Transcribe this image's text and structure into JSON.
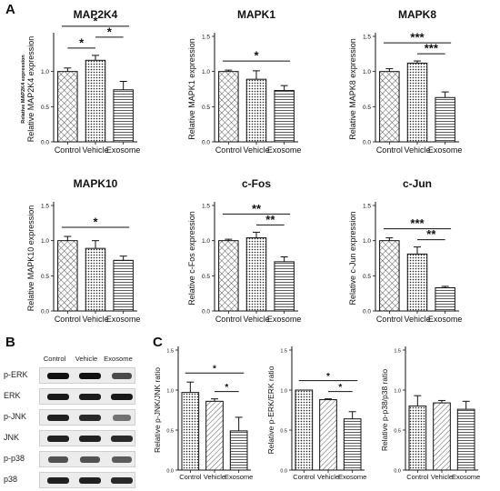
{
  "panel_letters": {
    "a": "A",
    "b": "B",
    "c": "C"
  },
  "colors": {
    "bar_fill": "#ffffff",
    "bar_stroke": "#111111",
    "text": "#111111"
  },
  "blot": {
    "lanes": [
      "Control",
      "Vehicle",
      "Exosome"
    ],
    "rows": [
      {
        "label": "p-ERK",
        "intensity": [
          1.0,
          1.0,
          0.65
        ]
      },
      {
        "label": "ERK",
        "intensity": [
          0.95,
          0.95,
          0.95
        ]
      },
      {
        "label": "p-JNK",
        "intensity": [
          0.9,
          0.85,
          0.4
        ]
      },
      {
        "label": "JNK",
        "intensity": [
          0.9,
          0.9,
          0.85
        ]
      },
      {
        "label": "p-p38",
        "intensity": [
          0.6,
          0.6,
          0.55
        ]
      },
      {
        "label": "p38",
        "intensity": [
          0.9,
          0.9,
          0.85
        ]
      }
    ]
  },
  "chart_data": [
    {
      "type": "bar",
      "title": "MAP2K4",
      "categories": [
        "Control",
        "Vehicle",
        "Exosome"
      ],
      "values": [
        1.0,
        1.16,
        0.74
      ],
      "errors": [
        0.05,
        0.07,
        0.12
      ],
      "ylabel": "Relative MAP2K4 expression",
      "ylabel_secondary": "Relative MAP2K4 expression",
      "ylim": [
        0,
        1.5
      ],
      "yticks": [
        "0.0",
        "0.5",
        "1.0"
      ],
      "patterns": [
        "crosshatch",
        "dots",
        "hlines"
      ],
      "significance": [
        {
          "from": 0,
          "to": 2,
          "label": "*"
        },
        {
          "from": 0,
          "to": 1,
          "label": "*"
        },
        {
          "from": 1,
          "to": 2,
          "label": "*"
        }
      ]
    },
    {
      "type": "bar",
      "title": "MAPK1",
      "categories": [
        "Control",
        "Vehicle",
        "Exosome"
      ],
      "values": [
        1.0,
        0.89,
        0.73
      ],
      "errors": [
        0.02,
        0.12,
        0.07
      ],
      "ylabel": "Relative MAPK1 expression",
      "ylim": [
        0,
        1.5
      ],
      "yticks": [
        "0.0",
        "0.5",
        "1.0",
        "1.5"
      ],
      "patterns": [
        "crosshatch",
        "dots",
        "hlines"
      ],
      "significance": [
        {
          "from": 0,
          "to": 2,
          "label": "*"
        }
      ]
    },
    {
      "type": "bar",
      "title": "MAPK8",
      "categories": [
        "Control",
        "Vehicle",
        "Exosome"
      ],
      "values": [
        1.0,
        1.12,
        0.63
      ],
      "errors": [
        0.04,
        0.03,
        0.08
      ],
      "ylabel": "Relative MAPK8 expression",
      "ylim": [
        0,
        1.5
      ],
      "yticks": [
        "0.0",
        "0.5",
        "1.0",
        "1.5"
      ],
      "patterns": [
        "crosshatch",
        "dots",
        "hlines"
      ],
      "significance": [
        {
          "from": 0,
          "to": 2,
          "label": "***"
        },
        {
          "from": 1,
          "to": 2,
          "label": "***"
        }
      ]
    },
    {
      "type": "bar",
      "title": "MAPK10",
      "categories": [
        "Control",
        "Vehicle",
        "Exosome"
      ],
      "values": [
        1.0,
        0.89,
        0.72
      ],
      "errors": [
        0.06,
        0.11,
        0.06
      ],
      "ylabel": "Relative MAPK10 expression",
      "ylim": [
        0,
        1.5
      ],
      "yticks": [
        "0.0",
        "0.5",
        "1.0",
        "1.5"
      ],
      "patterns": [
        "crosshatch",
        "dots",
        "hlines"
      ],
      "significance": [
        {
          "from": 0,
          "to": 2,
          "label": "*"
        }
      ]
    },
    {
      "type": "bar",
      "title": "c-Fos",
      "categories": [
        "Control",
        "Vehicle",
        "Exosome"
      ],
      "values": [
        1.0,
        1.04,
        0.7
      ],
      "errors": [
        0.02,
        0.08,
        0.07
      ],
      "ylabel": "Relative c-Fos expression",
      "ylim": [
        0,
        1.5
      ],
      "yticks": [
        "0.0",
        "0.5",
        "1.0",
        "1.5"
      ],
      "patterns": [
        "crosshatch",
        "dots",
        "hlines"
      ],
      "significance": [
        {
          "from": 0,
          "to": 2,
          "label": "**"
        },
        {
          "from": 1,
          "to": 2,
          "label": "**"
        }
      ]
    },
    {
      "type": "bar",
      "title": "c-Jun",
      "categories": [
        "Control",
        "Vehicle",
        "Exosome"
      ],
      "values": [
        1.0,
        0.81,
        0.33
      ],
      "errors": [
        0.04,
        0.1,
        0.02
      ],
      "ylabel": "Relative c-Jun expression",
      "ylim": [
        0,
        1.5
      ],
      "yticks": [
        "0.0",
        "0.5",
        "1.0",
        "1.5"
      ],
      "patterns": [
        "crosshatch",
        "dots",
        "hlines"
      ],
      "significance": [
        {
          "from": 0,
          "to": 2,
          "label": "***"
        },
        {
          "from": 1,
          "to": 2,
          "label": "**"
        }
      ]
    },
    {
      "type": "bar",
      "title": "",
      "categories": [
        "Control",
        "Vehicle",
        "Exosome"
      ],
      "values": [
        0.97,
        0.86,
        0.49
      ],
      "errors": [
        0.13,
        0.03,
        0.17
      ],
      "ylabel": "Relative p-JNK/JNK ratio",
      "ylim": [
        0,
        1.5
      ],
      "yticks": [
        "0.0",
        "0.5",
        "1.0",
        "1.5"
      ],
      "patterns": [
        "dots",
        "diag",
        "hlines"
      ],
      "significance": [
        {
          "from": 0,
          "to": 2,
          "label": "*"
        },
        {
          "from": 1,
          "to": 2,
          "label": "*"
        }
      ]
    },
    {
      "type": "bar",
      "title": "",
      "categories": [
        "Control",
        "Vehicle",
        "Exosome"
      ],
      "values": [
        1.0,
        0.88,
        0.64
      ],
      "errors": [
        0.0,
        0.01,
        0.09
      ],
      "ylabel": "Relative p-ERK/ERK ratio",
      "ylim": [
        0,
        1.5
      ],
      "yticks": [
        "0.0",
        "0.5",
        "1.0",
        "1.5"
      ],
      "patterns": [
        "dots",
        "diag",
        "hlines"
      ],
      "significance": [
        {
          "from": 0,
          "to": 2,
          "label": "*"
        },
        {
          "from": 1,
          "to": 2,
          "label": "*"
        }
      ]
    },
    {
      "type": "bar",
      "title": "",
      "categories": [
        "Control",
        "Vehicle",
        "Exosome"
      ],
      "values": [
        0.8,
        0.84,
        0.76
      ],
      "errors": [
        0.13,
        0.03,
        0.1
      ],
      "ylabel": "Relative p-p38/p38 ratio",
      "ylim": [
        0,
        1.5
      ],
      "yticks": [
        "0.0",
        "0.5",
        "1.0",
        "1.5"
      ],
      "patterns": [
        "dots",
        "diag",
        "hlines"
      ],
      "significance": []
    }
  ]
}
